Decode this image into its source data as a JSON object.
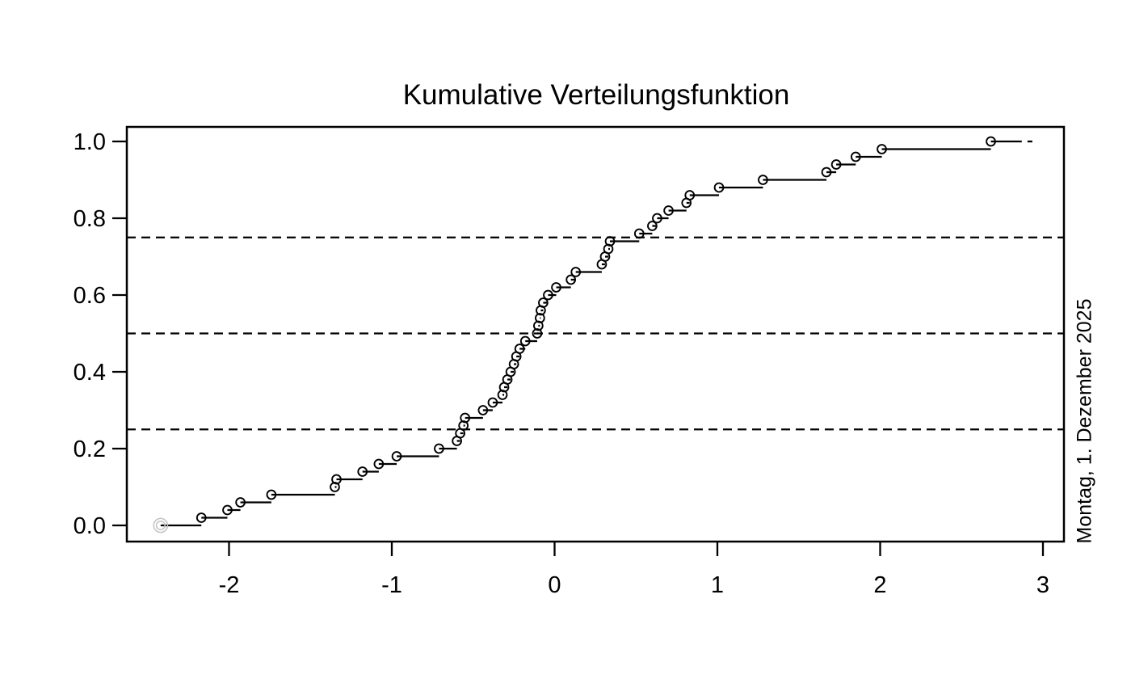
{
  "title": "Kumulative Verteilungsfunktion",
  "side_annotation": "Montag, 1. Dezember 2025",
  "colors": {
    "foreground": "#000000",
    "gray_marker": "#c3c3c3",
    "background": "#ffffff"
  },
  "chart_data": {
    "type": "line",
    "subtype": "ecdf-step-function",
    "title": "Kumulative Verteilungsfunktion",
    "xlabel": "",
    "ylabel": "",
    "n_points": 50,
    "step_size": 0.02,
    "xlim": [
      -2.63,
      3.13
    ],
    "ylim": [
      -0.04,
      1.04
    ],
    "x_ticks": [
      -2,
      -1,
      0,
      1,
      2,
      3
    ],
    "x_tick_labels": [
      "-2",
      "-1",
      "0",
      "1",
      "2",
      "3"
    ],
    "y_ticks": [
      0.0,
      0.2,
      0.4,
      0.6,
      0.8,
      1.0
    ],
    "y_tick_labels": [
      "0.0",
      "0.2",
      "0.4",
      "0.6",
      "0.8",
      "1.0"
    ],
    "grid": false,
    "legend_position": "none",
    "quantile_lines": [
      0.25,
      0.5,
      0.75
    ],
    "points": [
      [
        -2.17,
        0.02
      ],
      [
        -2.01,
        0.04
      ],
      [
        -1.93,
        0.06
      ],
      [
        -1.74,
        0.08
      ],
      [
        -1.35,
        0.1
      ],
      [
        -1.34,
        0.12
      ],
      [
        -1.18,
        0.14
      ],
      [
        -1.08,
        0.16
      ],
      [
        -0.97,
        0.18
      ],
      [
        -0.71,
        0.2
      ],
      [
        -0.6,
        0.22
      ],
      [
        -0.58,
        0.24
      ],
      [
        -0.56,
        0.26
      ],
      [
        -0.55,
        0.28
      ],
      [
        -0.44,
        0.3
      ],
      [
        -0.38,
        0.32
      ],
      [
        -0.32,
        0.34
      ],
      [
        -0.31,
        0.36
      ],
      [
        -0.29,
        0.38
      ],
      [
        -0.27,
        0.4
      ],
      [
        -0.25,
        0.42
      ],
      [
        -0.235,
        0.44
      ],
      [
        -0.215,
        0.46
      ],
      [
        -0.18,
        0.48
      ],
      [
        -0.107,
        0.5
      ],
      [
        -0.1,
        0.52
      ],
      [
        -0.09,
        0.54
      ],
      [
        -0.085,
        0.56
      ],
      [
        -0.07,
        0.58
      ],
      [
        -0.04,
        0.6
      ],
      [
        0.01,
        0.62
      ],
      [
        0.1,
        0.64
      ],
      [
        0.13,
        0.66
      ],
      [
        0.29,
        0.68
      ],
      [
        0.31,
        0.7
      ],
      [
        0.33,
        0.72
      ],
      [
        0.34,
        0.74
      ],
      [
        0.52,
        0.76
      ],
      [
        0.6,
        0.78
      ],
      [
        0.63,
        0.8
      ],
      [
        0.7,
        0.82
      ],
      [
        0.81,
        0.84
      ],
      [
        0.83,
        0.86
      ],
      [
        1.01,
        0.88
      ],
      [
        1.28,
        0.9
      ],
      [
        1.67,
        0.92
      ],
      [
        1.73,
        0.94
      ],
      [
        1.85,
        0.96
      ],
      [
        2.01,
        0.98
      ],
      [
        2.68,
        1.0
      ]
    ],
    "pre_segment": {
      "from_x": -2.42,
      "to_x": -2.17,
      "y": 0.0
    },
    "post_segment": {
      "from_x": 2.68,
      "to_x": 2.87,
      "y": 1.0
    },
    "end_dash": {
      "from_x": 2.905,
      "to_x": 2.935,
      "y": 1.0
    },
    "gray_start_marker": {
      "x": -2.42,
      "y": 0.0
    }
  }
}
